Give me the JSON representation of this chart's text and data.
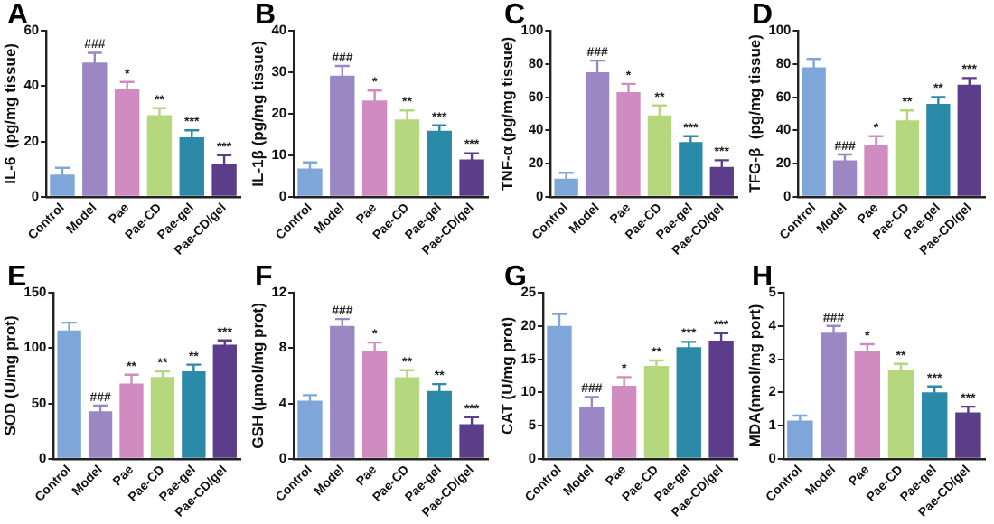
{
  "chart_data": [
    {
      "type": "bar",
      "title": "A",
      "ylabel": "IL-6  (pg/mg tissue)",
      "categories": [
        "Control",
        "Model",
        "Pae",
        "Pae-CD",
        "Pae-gel",
        "Pae-CD/gel"
      ],
      "values": [
        8,
        48.5,
        39,
        29.5,
        21.5,
        12
      ],
      "errors": [
        2.5,
        3.5,
        2.5,
        2.5,
        2.5,
        3
      ],
      "value_labels": [
        null,
        "###",
        "*",
        "**",
        "***",
        "***"
      ],
      "colors": [
        "#7ea6d8",
        "#9b87c4",
        "#d08cc0",
        "#b5d77e",
        "#2a8aa8",
        "#5b3d8a"
      ],
      "ylim": [
        0,
        60
      ],
      "yticks": [
        0,
        20,
        40,
        60
      ],
      "grid": false,
      "legend": false
    },
    {
      "type": "bar",
      "title": "B",
      "ylabel": "IL-1β (pg/mg tissue)",
      "categories": [
        "Control",
        "Model",
        "Pae",
        "Pae-CD",
        "Pae-gel",
        "Pae-CD/gel"
      ],
      "values": [
        6.8,
        29.2,
        23.2,
        18.6,
        15.9,
        9
      ],
      "errors": [
        1.5,
        2.3,
        2.4,
        2.2,
        1.3,
        1.5
      ],
      "value_labels": [
        null,
        "###",
        "*",
        "**",
        "***",
        "***"
      ],
      "colors": [
        "#7ea6d8",
        "#9b87c4",
        "#d08cc0",
        "#b5d77e",
        "#2a8aa8",
        "#5b3d8a"
      ],
      "ylim": [
        0,
        40
      ],
      "yticks": [
        0,
        10,
        20,
        30,
        40
      ],
      "grid": false,
      "legend": false
    },
    {
      "type": "bar",
      "title": "C",
      "ylabel": "TNF-α (pg/mg tissue)",
      "categories": [
        "Control",
        "Model",
        "Pae",
        "Pae-CD",
        "Pae-gel",
        "Pae-CD/gel"
      ],
      "values": [
        11,
        75,
        63,
        49,
        33,
        18
      ],
      "errors": [
        3.5,
        7,
        5,
        6,
        3.5,
        4
      ],
      "value_labels": [
        null,
        "###",
        "*",
        "**",
        "***",
        "***"
      ],
      "colors": [
        "#7ea6d8",
        "#9b87c4",
        "#d08cc0",
        "#b5d77e",
        "#2a8aa8",
        "#5b3d8a"
      ],
      "ylim": [
        0,
        100
      ],
      "yticks": [
        0,
        20,
        40,
        60,
        80,
        100
      ],
      "grid": false,
      "legend": false
    },
    {
      "type": "bar",
      "title": "D",
      "ylabel": "TFG-β  (pg/mg tissue)",
      "categories": [
        "Control",
        "Model",
        "Pae",
        "Pae-CD",
        "Pae-gel",
        "Pae-CD/gel"
      ],
      "values": [
        78,
        22,
        31.5,
        46,
        56,
        67.5
      ],
      "errors": [
        5,
        3.5,
        5,
        6,
        4,
        4
      ],
      "value_labels": [
        null,
        "###",
        "*",
        "**",
        "**",
        "***"
      ],
      "colors": [
        "#7ea6d8",
        "#9b87c4",
        "#d08cc0",
        "#b5d77e",
        "#2a8aa8",
        "#5b3d8a"
      ],
      "ylim": [
        0,
        100
      ],
      "yticks": [
        0,
        20,
        40,
        60,
        80,
        100
      ],
      "grid": false,
      "legend": false
    },
    {
      "type": "bar",
      "title": "E",
      "ylabel": "SOD (U/mg prot)",
      "categories": [
        "Control",
        "Model",
        "Pae",
        "Pae-CD",
        "Pae-gel",
        "Pae-CD/gel"
      ],
      "values": [
        116,
        43,
        68,
        74,
        79,
        103
      ],
      "errors": [
        7,
        5,
        8,
        5,
        6,
        4
      ],
      "value_labels": [
        null,
        "###",
        "**",
        "**",
        "**",
        "***"
      ],
      "colors": [
        "#7ea6d8",
        "#9b87c4",
        "#d08cc0",
        "#b5d77e",
        "#2a8aa8",
        "#5b3d8a"
      ],
      "ylim": [
        0,
        150
      ],
      "yticks": [
        0,
        50,
        100,
        150
      ],
      "grid": false,
      "legend": false
    },
    {
      "type": "bar",
      "title": "F",
      "ylabel": "GSH (μmol/mg prot)",
      "categories": [
        "Control",
        "Model",
        "Pae",
        "Pae-CD",
        "Pae-gel",
        "Pae-CD/gel"
      ],
      "values": [
        4.2,
        9.6,
        7.8,
        5.9,
        4.9,
        2.5
      ],
      "errors": [
        0.4,
        0.5,
        0.6,
        0.5,
        0.5,
        0.5
      ],
      "value_labels": [
        null,
        "###",
        "*",
        "**",
        "**",
        "***"
      ],
      "colors": [
        "#7ea6d8",
        "#9b87c4",
        "#d08cc0",
        "#b5d77e",
        "#2a8aa8",
        "#5b3d8a"
      ],
      "ylim": [
        0,
        12
      ],
      "yticks": [
        0,
        4,
        8,
        12
      ],
      "grid": false,
      "legend": false
    },
    {
      "type": "bar",
      "title": "G",
      "ylabel": "CAT (U/mg prot)",
      "categories": [
        "Control",
        "Model",
        "Pae",
        "Pae-CD",
        "Pae-gel",
        "Pae-CD/gel"
      ],
      "values": [
        20,
        7.8,
        11,
        14,
        16.8,
        17.8
      ],
      "errors": [
        1.8,
        1.5,
        1.3,
        0.8,
        0.8,
        1.1
      ],
      "value_labels": [
        null,
        "###",
        "*",
        "**",
        "***",
        "***"
      ],
      "colors": [
        "#7ea6d8",
        "#9b87c4",
        "#d08cc0",
        "#b5d77e",
        "#2a8aa8",
        "#5b3d8a"
      ],
      "ylim": [
        0,
        25
      ],
      "yticks": [
        0,
        5,
        10,
        15,
        20,
        25
      ],
      "grid": false,
      "legend": false
    },
    {
      "type": "bar",
      "title": "H",
      "ylabel": "MDA(nmol/mg port)",
      "categories": [
        "Control",
        "Model",
        "Pae",
        "Pae-CD",
        "Pae-gel",
        "Pae-CD/gel"
      ],
      "values": [
        1.15,
        3.8,
        3.25,
        2.68,
        2,
        1.4
      ],
      "errors": [
        0.15,
        0.2,
        0.2,
        0.18,
        0.18,
        0.17
      ],
      "value_labels": [
        null,
        "###",
        "*",
        "**",
        "***",
        "***"
      ],
      "colors": [
        "#7ea6d8",
        "#9b87c4",
        "#d08cc0",
        "#b5d77e",
        "#2a8aa8",
        "#5b3d8a"
      ],
      "ylim": [
        0,
        5
      ],
      "yticks": [
        0,
        1,
        2,
        3,
        4,
        5
      ],
      "grid": false,
      "legend": false
    }
  ]
}
